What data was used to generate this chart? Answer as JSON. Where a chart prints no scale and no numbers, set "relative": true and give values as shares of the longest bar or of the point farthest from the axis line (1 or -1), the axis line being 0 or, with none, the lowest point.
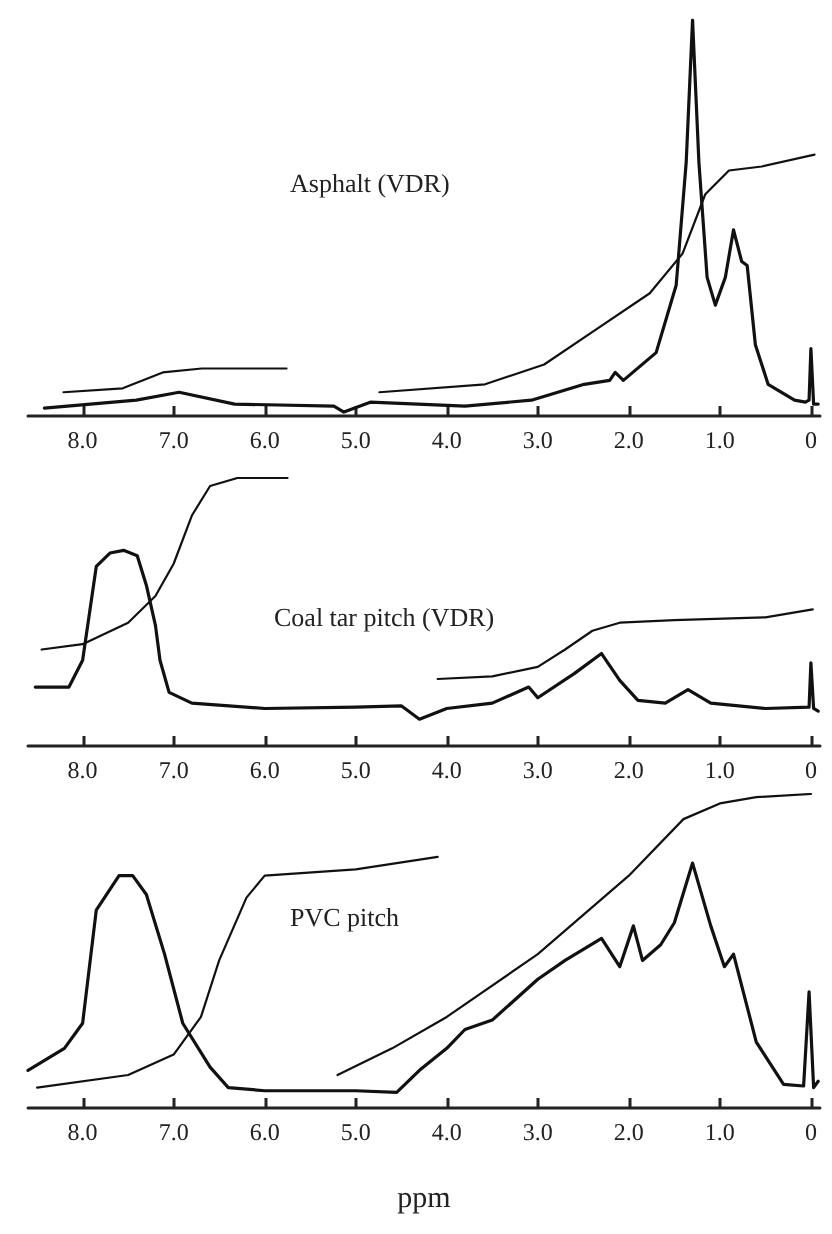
{
  "chart_data": [
    {
      "type": "line",
      "title": "Asphalt (VDR)",
      "relative": true,
      "marker": "none",
      "xlim": [
        8.6,
        -0.1
      ],
      "xticks": [
        {
          "value": 8,
          "label": "8.0"
        },
        {
          "value": 7,
          "label": "7.0"
        },
        {
          "value": 6,
          "label": "6.0"
        },
        {
          "value": 5,
          "label": "5.0"
        },
        {
          "value": 4,
          "label": "4.0"
        },
        {
          "value": 3,
          "label": "3.0"
        },
        {
          "value": 2,
          "label": "2.0"
        },
        {
          "value": 1,
          "label": "1.0"
        },
        {
          "value": 0,
          "label": "0"
        }
      ],
      "series": [
        {
          "color": "#111111",
          "x": [
            8.42,
            7.41,
            6.94,
            6.33,
            5.24,
            5.13,
            4.84,
            3.8,
            3.07,
            2.49,
            2.21,
            2.15,
            2.06,
            1.7,
            1.48,
            1.37,
            1.3,
            1.23,
            1.14,
            1.05,
            0.94,
            0.85,
            0.76,
            0.7,
            0.61,
            0.47,
            0.18,
            0.06,
            0.02,
            0,
            -0.03,
            -0.08
          ],
          "values": [
            0.02,
            0.04,
            0.06,
            0.03,
            0.025,
            0.01,
            0.035,
            0.025,
            0.04,
            0.08,
            0.09,
            0.11,
            0.09,
            0.16,
            0.33,
            0.64,
            1,
            0.64,
            0.35,
            0.28,
            0.35,
            0.47,
            0.39,
            0.38,
            0.18,
            0.08,
            0.04,
            0.035,
            0.04,
            0.17,
            0.03,
            0.03
          ]
        },
        {
          "color": "#111111",
          "x": [
            8.21,
            7.56,
            7.12,
            6.69,
            5.76
          ],
          "values": [
            0.06,
            0.07,
            0.11,
            0.12,
            0.12
          ]
        },
        {
          "color": "#111111",
          "x": [
            4.74,
            3.58,
            2.93,
            2.35,
            1.77,
            1.41,
            1.16,
            0.9,
            0.54,
            -0.04
          ],
          "values": [
            0.06,
            0.08,
            0.13,
            0.22,
            0.31,
            0.41,
            0.56,
            0.62,
            0.63,
            0.66
          ]
        }
      ]
    },
    {
      "type": "line",
      "title": "Coal tar pitch (VDR)",
      "relative": true,
      "marker": "none",
      "xlim": [
        8.6,
        -0.1
      ],
      "xticks": [
        {
          "value": 8,
          "label": "8.0"
        },
        {
          "value": 7,
          "label": "7.0"
        },
        {
          "value": 6,
          "label": "6.0"
        },
        {
          "value": 5,
          "label": "5.0"
        },
        {
          "value": 4,
          "label": "4.0"
        },
        {
          "value": 3,
          "label": "3.0"
        },
        {
          "value": 2,
          "label": "2.0"
        },
        {
          "value": 1,
          "label": "1.0"
        },
        {
          "value": 0,
          "label": "0"
        }
      ],
      "series": [
        {
          "color": "#111111",
          "x": [
            8.52,
            8.15,
            8,
            7.85,
            7.7,
            7.55,
            7.4,
            7.3,
            7.2,
            7.15,
            7.05,
            6.8,
            6,
            5,
            4.5,
            4.3,
            4,
            3.5,
            3.1,
            3,
            2.6,
            2.3,
            2.1,
            1.9,
            1.6,
            1.35,
            1.1,
            0.5,
            0.02,
            0,
            -0.03,
            -0.08
          ],
          "values": [
            0.22,
            0.22,
            0.32,
            0.67,
            0.72,
            0.73,
            0.71,
            0.6,
            0.45,
            0.32,
            0.2,
            0.16,
            0.14,
            0.145,
            0.15,
            0.1,
            0.14,
            0.16,
            0.22,
            0.18,
            0.27,
            0.345,
            0.245,
            0.17,
            0.16,
            0.21,
            0.16,
            0.14,
            0.145,
            0.31,
            0.14,
            0.13
          ]
        },
        {
          "color": "#111111",
          "x": [
            8.45,
            8,
            7.5,
            7.2,
            7,
            6.8,
            6.6,
            6.3,
            5.75
          ],
          "values": [
            0.36,
            0.38,
            0.46,
            0.56,
            0.68,
            0.86,
            0.97,
            1,
            1
          ]
        },
        {
          "color": "#111111",
          "x": [
            4.1,
            3.5,
            3,
            2.7,
            2.4,
            2.1,
            1.5,
            0.5,
            -0.02
          ],
          "values": [
            0.25,
            0.26,
            0.295,
            0.36,
            0.43,
            0.46,
            0.47,
            0.48,
            0.51
          ]
        }
      ]
    },
    {
      "type": "line",
      "title": "PVC pitch",
      "xlabel": "ppm",
      "relative": true,
      "marker": "none",
      "xlim": [
        8.6,
        -0.1
      ],
      "xticks": [
        {
          "value": 8,
          "label": "8.0"
        },
        {
          "value": 7,
          "label": "7.0"
        },
        {
          "value": 6,
          "label": "6.0"
        },
        {
          "value": 5,
          "label": "5.0"
        },
        {
          "value": 4,
          "label": "4.0"
        },
        {
          "value": 3,
          "label": "3.0"
        },
        {
          "value": 2,
          "label": "2.0"
        },
        {
          "value": 1,
          "label": "1.0"
        },
        {
          "value": 0,
          "label": "0"
        }
      ],
      "series": [
        {
          "color": "#111111",
          "x": [
            8.6,
            8.2,
            8,
            7.85,
            7.6,
            7.45,
            7.3,
            7.1,
            6.9,
            6.6,
            6.4,
            6,
            5,
            4.55,
            4.3,
            4,
            3.8,
            3.5,
            3,
            2.7,
            2.3,
            2.1,
            1.95,
            1.85,
            1.65,
            1.5,
            1.3,
            1.1,
            0.95,
            0.85,
            0.6,
            0.3,
            0.08,
            0.02,
            -0.03,
            -0.08
          ],
          "values": [
            0.12,
            0.19,
            0.27,
            0.63,
            0.74,
            0.74,
            0.68,
            0.49,
            0.27,
            0.13,
            0.065,
            0.055,
            0.055,
            0.05,
            0.12,
            0.19,
            0.25,
            0.28,
            0.41,
            0.47,
            0.54,
            0.45,
            0.58,
            0.47,
            0.52,
            0.59,
            0.78,
            0.58,
            0.45,
            0.49,
            0.21,
            0.075,
            0.07,
            0.37,
            0.065,
            0.085
          ]
        },
        {
          "color": "#111111",
          "x": [
            8.5,
            7.5,
            7,
            6.7,
            6.5,
            6.2,
            6,
            5,
            4.1
          ],
          "values": [
            0.065,
            0.105,
            0.17,
            0.29,
            0.47,
            0.67,
            0.74,
            0.76,
            0.8
          ]
        },
        {
          "color": "#111111",
          "x": [
            5.2,
            4.6,
            4,
            3,
            2,
            1.4,
            1,
            0.6,
            0
          ],
          "values": [
            0.105,
            0.19,
            0.29,
            0.49,
            0.74,
            0.92,
            0.97,
            0.99,
            1
          ]
        }
      ]
    }
  ]
}
